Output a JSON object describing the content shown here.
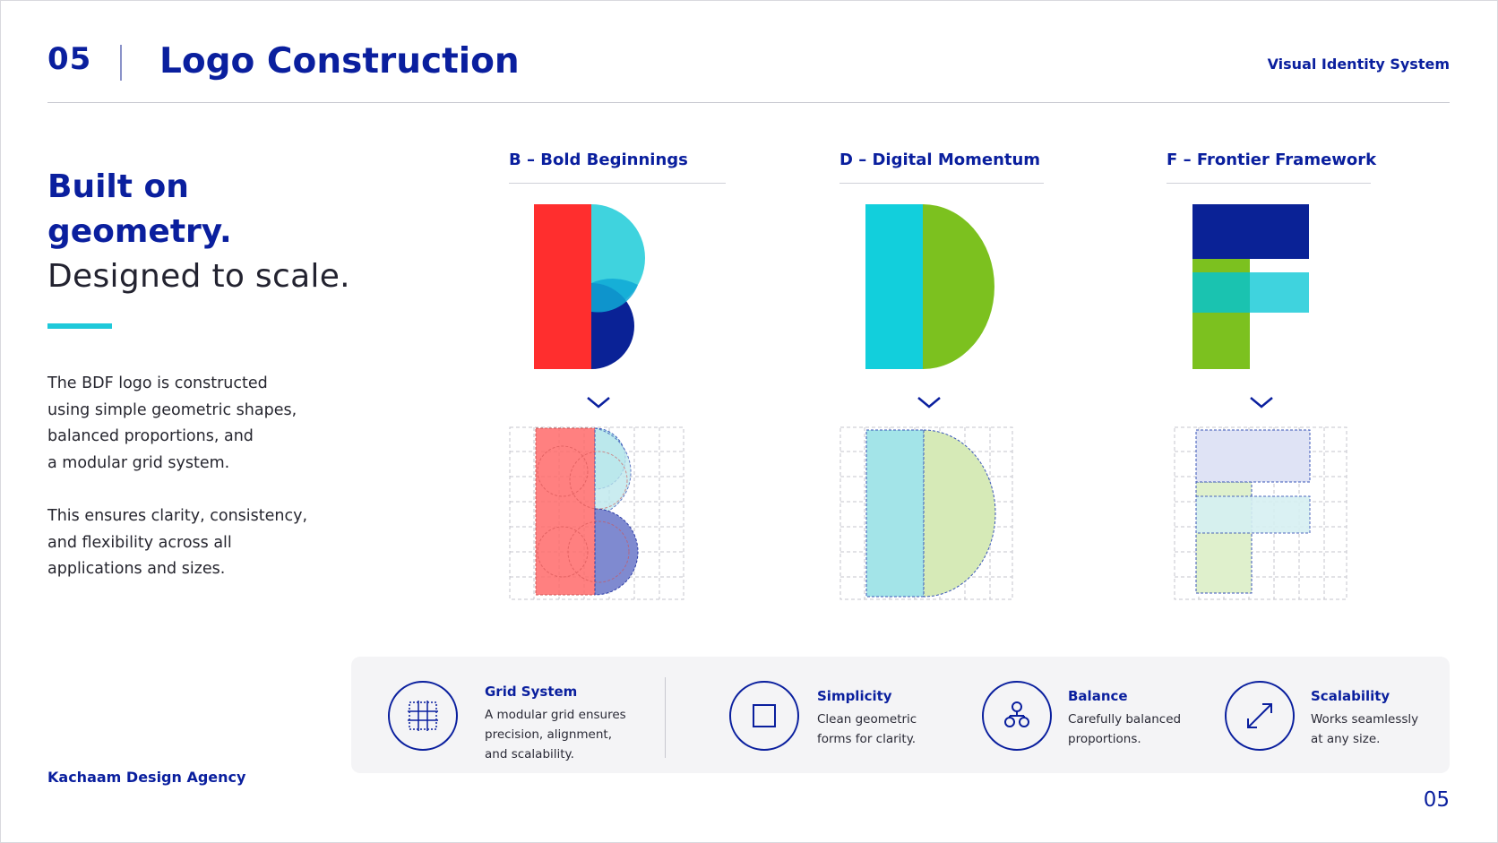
{
  "header": {
    "section_number": "05",
    "title": "Logo Construction",
    "right_label": "Visual Identity System"
  },
  "intro": {
    "headline_line1": "Built on",
    "headline_line2": "geometry.",
    "headline_line3": "Designed to scale.",
    "paragraph1": "The BDF logo is constructed\nusing simple geometric shapes,\nbalanced proportions, and\na modular grid system.",
    "paragraph2": "This ensures clarity, consistency,\nand flexibility across all\napplications and sizes."
  },
  "letters": [
    {
      "title": "B – Bold Beginnings"
    },
    {
      "title": "D – Digital Momentum"
    },
    {
      "title": "F – Frontier Framework"
    }
  ],
  "principles": [
    {
      "title": "Grid System",
      "description": "A modular grid ensures\nprecision, alignment,\nand scalability.",
      "icon": "grid-icon"
    },
    {
      "title": "Simplicity",
      "description": "Clean geometric\nforms for clarity.",
      "icon": "square-icon"
    },
    {
      "title": "Balance",
      "description": "Carefully balanced\nproportions.",
      "icon": "balance-nodes-icon"
    },
    {
      "title": "Scalability",
      "description": "Works seamlessly\nat any size.",
      "icon": "expand-arrows-icon"
    }
  ],
  "footer": {
    "agency": "Kachaam Design Agency",
    "page_number": "05"
  },
  "colors": {
    "navy": "#0a1f9e",
    "red": "#ff2e2e",
    "cyan": "#12cfdc",
    "green": "#7cc11f",
    "teal": "#1ac3b0",
    "dark_blue": "#0a2296"
  }
}
